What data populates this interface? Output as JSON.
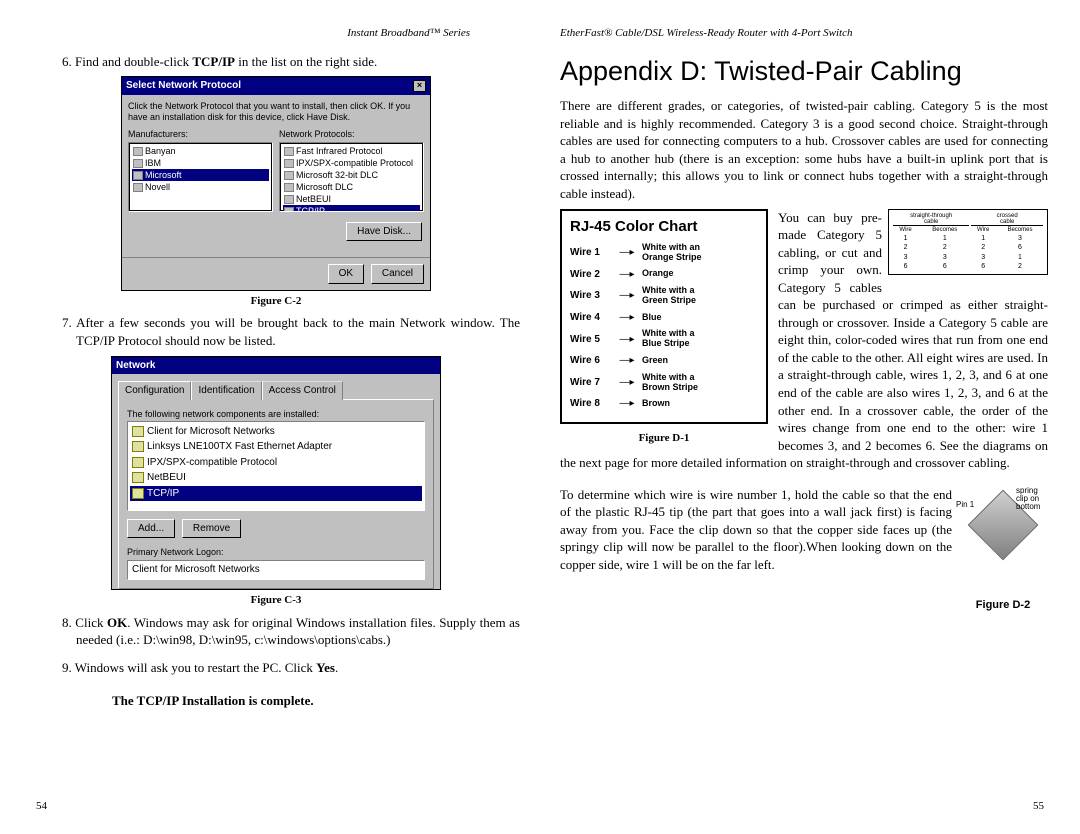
{
  "leftPage": {
    "header": "Instant Broadband™ Series",
    "pageNumber": "54",
    "step6": {
      "num": "6.",
      "textA": "Find and double-click ",
      "bold": "TCP/IP",
      "textB": " in the list on the right side."
    },
    "figC2": {
      "caption": "Figure C-2",
      "dialogTitle": "Select Network Protocol",
      "prompt": "Click the Network Protocol that you want to install, then click OK. If you have an installation disk for this device, click Have Disk.",
      "manufacturersLabel": "Manufacturers:",
      "protocolsLabel": "Network Protocols:",
      "manufacturers": [
        "Banyan",
        "IBM",
        "Microsoft",
        "Novell"
      ],
      "manufacturersSelected": 2,
      "protocols": [
        "Fast Infrared Protocol",
        "IPX/SPX-compatible Protocol",
        "Microsoft 32-bit DLC",
        "Microsoft DLC",
        "NetBEUI",
        "TCP/IP"
      ],
      "protocolsSelected": 5,
      "haveDiskBtn": "Have Disk...",
      "okBtn": "OK",
      "cancelBtn": "Cancel"
    },
    "step7": {
      "num": "7.",
      "text": "After a few seconds you will be brought back to the main Network window. The TCP/IP Protocol should now be listed."
    },
    "figC3": {
      "caption": "Figure C-3",
      "dialogTitle": "Network",
      "tabs": [
        "Configuration",
        "Identification",
        "Access Control"
      ],
      "listLabel": "The following network components are installed:",
      "components": [
        "Client for Microsoft Networks",
        "Linksys LNE100TX Fast Ethernet Adapter",
        "IPX/SPX-compatible Protocol",
        "NetBEUI",
        "TCP/IP"
      ],
      "componentsSelected": 4,
      "addBtn": "Add...",
      "removeBtn": "Remove",
      "logonLabel": "Primary Network Logon:",
      "logonValue": "Client for Microsoft Networks"
    },
    "step8": {
      "num": "8.",
      "textA": "Click ",
      "bold": "OK",
      "textB": ". Windows may ask for original Windows installation files. Supply them as needed (i.e.: D:\\win98, D:\\win95, c:\\windows\\options\\cabs.)"
    },
    "step9": {
      "num": "9.",
      "textA": "Windows will ask you to restart the PC. Click ",
      "bold": "Yes",
      "textB": "."
    },
    "completeLine": "The TCP/IP Installation is complete."
  },
  "rightPage": {
    "header": "EtherFast® Cable/DSL Wireless-Ready Router with 4-Port Switch",
    "pageNumber": "55",
    "appendixTitle": "Appendix D: Twisted-Pair Cabling",
    "intro": "There are different grades, or categories, of twisted-pair cabling. Category 5 is the most reliable and is highly recommended. Category 3 is a good second choice. Straight-through cables are used for connecting computers to a hub. Crossover cables are used for connecting a hub to another hub (there is an exception: some hubs have a built-in uplink port that is crossed internally; this allows you to link or connect hubs together with a straight-through cable instead).",
    "rj45": {
      "title": "RJ-45 Color Chart",
      "rows": [
        {
          "wire": "Wire 1",
          "color": "White with an\nOrange Stripe"
        },
        {
          "wire": "Wire 2",
          "color": "Orange"
        },
        {
          "wire": "Wire 3",
          "color": "White with a\nGreen Stripe"
        },
        {
          "wire": "Wire 4",
          "color": "Blue"
        },
        {
          "wire": "Wire 5",
          "color": "White with a\nBlue Stripe"
        },
        {
          "wire": "Wire 6",
          "color": "Green"
        },
        {
          "wire": "Wire 7",
          "color": "White with a\nBrown Stripe"
        },
        {
          "wire": "Wire 8",
          "color": "Brown"
        }
      ],
      "caption": "Figure D-1"
    },
    "wrapText": "You can buy pre-made Category 5 cabling, or cut and crimp your own. Category 5 cables can be purchased or crimped as either straight-through or crossover. Inside a Category 5 cable are eight thin, color-coded wires that run from one end of the cable to the other. All eight wires are used. In a straight-through cable, wires 1, 2, 3, and 6 at one end of the cable are also wires 1, 2, 3, and 6 at the other end. In a crossover cable, the order of the wires change from one end to the other: wire 1 becomes 3, and 2 becomes 6. See the diagrams on the next page for more detailed information on straight-through and crossover cabling.",
    "wireTable": {
      "head1": "straight-through\ncable",
      "head2": "crossed\ncable",
      "sub": [
        "Wire",
        "Becomes",
        "Wire",
        "Becomes"
      ],
      "rows": [
        [
          "1",
          "1",
          "1",
          "3"
        ],
        [
          "2",
          "2",
          "2",
          "6"
        ],
        [
          "3",
          "3",
          "3",
          "1"
        ],
        [
          "6",
          "6",
          "6",
          "2"
        ]
      ]
    },
    "para2": "To determine which wire is wire number 1, hold the cable so that the end of the plastic RJ-45 tip (the part that goes into a wall jack first) is facing away from you. Face the clip down so that the copper side faces up (the springy clip will now be parallel to the floor).When looking down on the copper side, wire 1 will be on the far left.",
    "pinFig": {
      "pin1": "Pin 1",
      "spring": "spring\nclip on\nbottom",
      "caption": "Figure D-2"
    }
  },
  "style": {
    "bgColor": "#ffffff",
    "textColor": "#000000",
    "win95bg": "#c0c0c0",
    "win95titlebar": "#000080",
    "borderDark": "#000000"
  }
}
